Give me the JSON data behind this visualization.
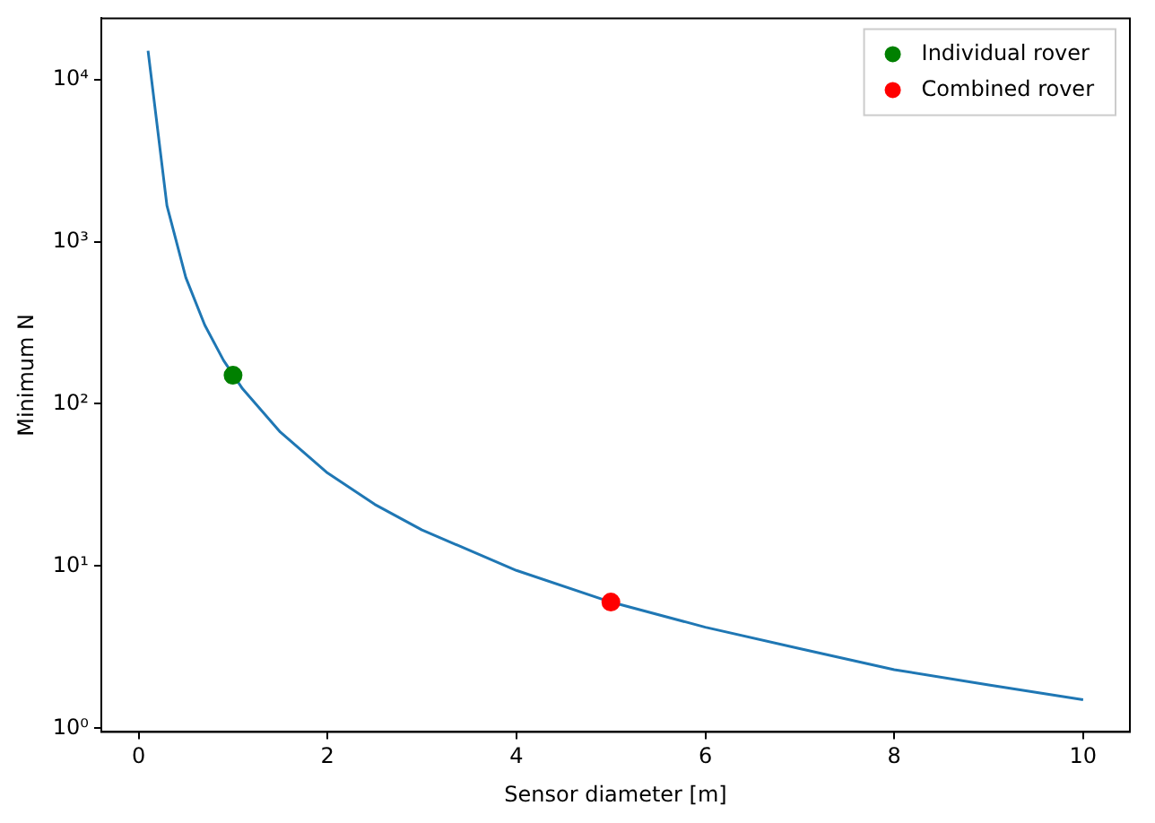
{
  "chart_data": {
    "type": "line",
    "xlabel": "Sensor diameter [m]",
    "ylabel": "Minimum N",
    "log": "y",
    "xlim": [
      -0.395,
      10.495
    ],
    "xticks": [
      0,
      2,
      4,
      6,
      8,
      10
    ],
    "ylim": [
      0.95,
      23800
    ],
    "yticks": [
      {
        "value": 1,
        "label": "10⁰"
      },
      {
        "value": 10,
        "label": "10¹"
      },
      {
        "value": 100,
        "label": "10²"
      },
      {
        "value": 1000,
        "label": "10³"
      },
      {
        "value": 10000,
        "label": "10⁴"
      }
    ],
    "grid": false,
    "legend": "top right",
    "series": [
      {
        "color": "#1f77b4",
        "marker": "none",
        "x": [
          0.1,
          0.3,
          0.5,
          0.7,
          0.9,
          1.1,
          1.5,
          2,
          2.5,
          3,
          4,
          5,
          6,
          7,
          8,
          9,
          10
        ],
        "values": [
          15000,
          1667,
          600,
          306,
          185,
          124,
          67,
          37.5,
          24,
          16.7,
          9.4,
          6,
          4.2,
          3.1,
          2.3,
          1.85,
          1.5
        ]
      },
      {
        "type": "scatter",
        "name": "Individual rover",
        "color": "#008000",
        "marker": "circle",
        "x": [
          1
        ],
        "values": [
          150
        ]
      },
      {
        "type": "scatter",
        "name": "Combined rover",
        "color": "#ff0000",
        "marker": "circle",
        "x": [
          5
        ],
        "values": [
          6
        ]
      }
    ]
  }
}
